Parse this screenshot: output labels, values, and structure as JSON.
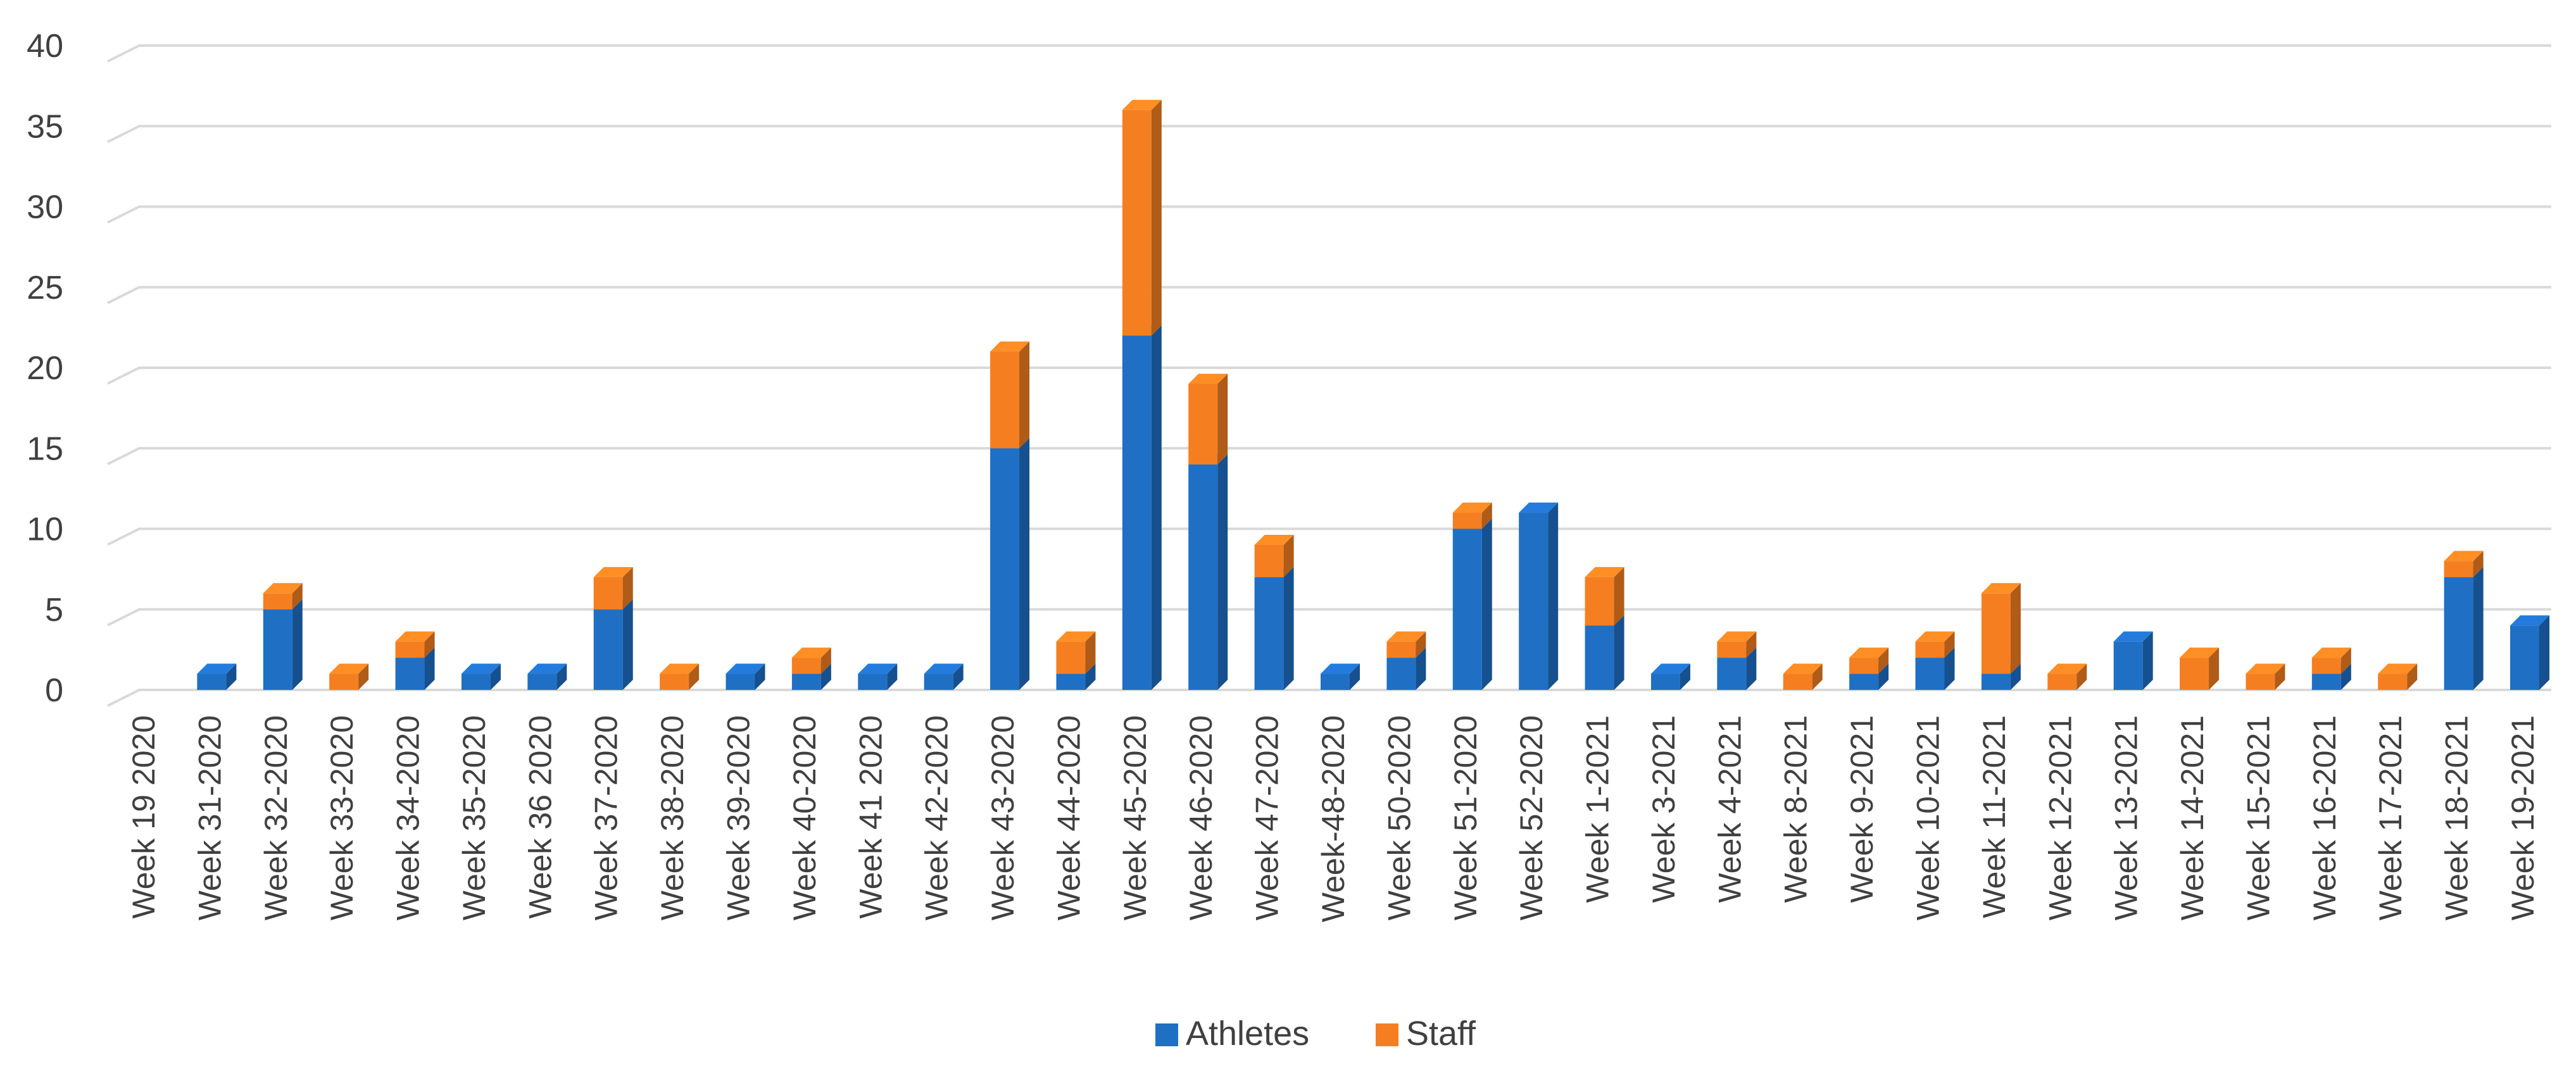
{
  "chart_data": {
    "type": "bar",
    "stacked": true,
    "style": "3d-column",
    "categories": [
      "Week 19 2020",
      "Week 31-2020",
      "Week 32-2020",
      "Week 33-2020",
      "Week 34-2020",
      "Week 35-2020",
      "Week 36 2020",
      "Week 37-2020",
      "Week 38-2020",
      "Week 39-2020",
      "Week 40-2020",
      "Week 41 2020",
      "Week 42-2020",
      "Week 43-2020",
      "Week 44-2020",
      "Week 45-2020",
      "Week 46-2020",
      "Week 47-2020",
      "Week-48-2020",
      "Week 50-2020",
      "Week 51-2020",
      "Week 52-2020",
      "Week 1-2021",
      "Week 3-2021",
      "Week 4-2021",
      "Week 8-2021",
      "Week 9-2021",
      "Week 10-2021",
      "Week 11-2021",
      "Week 12-2021",
      "Week 13-2021",
      "Week 14-2021",
      "Week 15-2021",
      "Week 16-2021",
      "Week 17-2021",
      "Week 18-2021",
      "Week 19-2021"
    ],
    "series": [
      {
        "name": "Athletes",
        "color": "#1f6fc5",
        "values": [
          0,
          1,
          5,
          0,
          2,
          1,
          1,
          5,
          0,
          1,
          1,
          1,
          1,
          15,
          1,
          22,
          14,
          7,
          1,
          2,
          10,
          11,
          4,
          1,
          2,
          0,
          1,
          2,
          1,
          0,
          3,
          0,
          0,
          1,
          0,
          7,
          4
        ]
      },
      {
        "name": "Staff",
        "color": "#f57f20",
        "values": [
          0,
          0,
          1,
          1,
          1,
          0,
          0,
          2,
          1,
          0,
          1,
          0,
          0,
          6,
          2,
          14,
          5,
          2,
          0,
          1,
          1,
          0,
          3,
          0,
          1,
          1,
          1,
          1,
          5,
          1,
          0,
          2,
          1,
          1,
          1,
          1,
          0
        ]
      }
    ],
    "yticks": [
      "0",
      "5",
      "10",
      "15",
      "20",
      "25",
      "30",
      "35",
      "40"
    ],
    "ylim": [
      0,
      40
    ],
    "grid": true,
    "legend": "bottom"
  }
}
